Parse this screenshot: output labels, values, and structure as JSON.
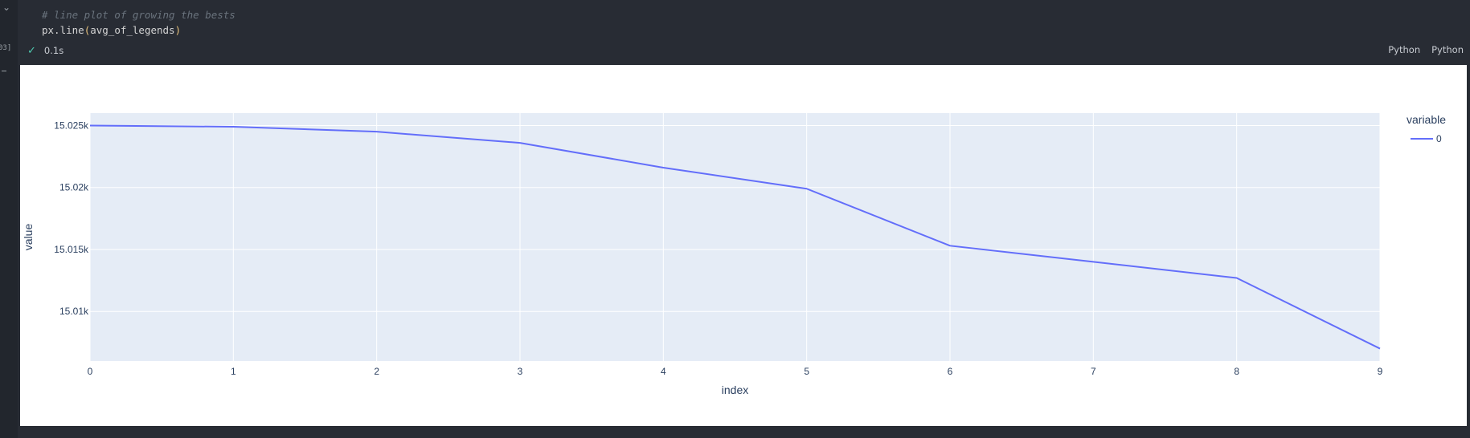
{
  "cell": {
    "code_comment": "# line plot of growing the bests",
    "code_func": "px.line",
    "code_open": "(",
    "code_arg": "avg_of_legends",
    "code_close": ")",
    "exec_count": "03]",
    "duration": "0.1s",
    "language_labels": [
      "Python",
      "Python"
    ]
  },
  "colors": {
    "plot_bg": "#e5ecf6",
    "line": "#636efa",
    "grid": "#ffffff",
    "axis_text": "#2a3f5f"
  },
  "chart_data": {
    "type": "line",
    "title": "",
    "xlabel": "index",
    "ylabel": "value",
    "x": [
      0,
      1,
      2,
      3,
      4,
      5,
      6,
      7,
      8,
      9
    ],
    "series": [
      {
        "name": "0",
        "values": [
          15025.0,
          15024.9,
          15024.5,
          15023.6,
          15021.6,
          15019.9,
          15015.3,
          15014.0,
          15012.7,
          15007.0
        ]
      }
    ],
    "xlim": [
      0,
      9
    ],
    "ylim": [
      15006.0,
      15026.0
    ],
    "yticks": [
      15010,
      15015,
      15020,
      15025
    ],
    "ytick_labels": [
      "15.01k",
      "15.015k",
      "15.02k",
      "15.025k"
    ],
    "xticks": [
      0,
      1,
      2,
      3,
      4,
      5,
      6,
      7,
      8,
      9
    ],
    "xtick_labels": [
      "0",
      "1",
      "2",
      "3",
      "4",
      "5",
      "6",
      "7",
      "8",
      "9"
    ],
    "legend_title": "variable",
    "legend_position": "top-right",
    "grid": true
  }
}
